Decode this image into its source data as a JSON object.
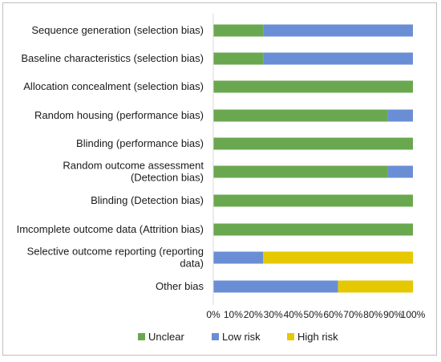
{
  "chart_data": {
    "type": "bar",
    "orientation": "horizontal",
    "stacked": true,
    "categories": [
      [
        "Sequence generation (selection bias)"
      ],
      [
        "Baseline characteristics (selection bias)"
      ],
      [
        "Allocation concealment (selection bias)"
      ],
      [
        "Random housing (performance bias)"
      ],
      [
        "Blinding (performance bias)"
      ],
      [
        "Random outcome assessment",
        "(Detection bias)"
      ],
      [
        "Blinding (Detection bias)"
      ],
      [
        "Imcomplete outcome data (Attrition bias)"
      ],
      [
        "Selective outcome reporting (reporting",
        "data)"
      ],
      [
        "Other bias"
      ]
    ],
    "series": [
      {
        "name": "Unclear",
        "color": "#6aa84f",
        "values": [
          25,
          25,
          100,
          87.5,
          100,
          87.5,
          100,
          100,
          0,
          0
        ]
      },
      {
        "name": "Low risk",
        "color": "#6a8ed6",
        "values": [
          75,
          75,
          0,
          12.5,
          0,
          12.5,
          0,
          0,
          25,
          62.5
        ]
      },
      {
        "name": "High risk",
        "color": "#e6c800",
        "values": [
          0,
          0,
          0,
          0,
          0,
          0,
          0,
          0,
          75,
          37.5
        ]
      }
    ],
    "xticks": [
      "0%",
      "10%",
      "20%",
      "30%",
      "40%",
      "50%",
      "60%",
      "70%",
      "80%",
      "90%",
      "100%"
    ],
    "xlim": [
      0,
      100
    ],
    "grid": false,
    "legend": "bottom"
  }
}
